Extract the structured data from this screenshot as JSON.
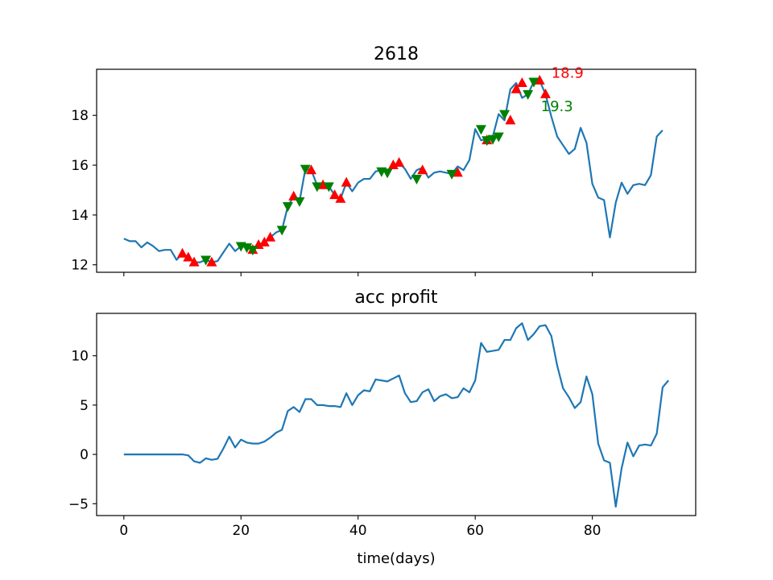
{
  "chart_data": [
    {
      "type": "line",
      "title": "2618",
      "xlabel": "",
      "ylabel": "",
      "xlim": [
        -4.65,
        97.65
      ],
      "ylim": [
        11.7,
        19.85
      ],
      "x_ticks": [
        0,
        20,
        40,
        60,
        80
      ],
      "x_tick_labels_visible": false,
      "y_ticks": [
        12,
        14,
        16,
        18
      ],
      "y_tick_labels": [
        "12",
        "14",
        "16",
        "18"
      ],
      "line_color": "#1f77b4",
      "series": [
        {
          "values": [
            13.05,
            12.95,
            12.95,
            12.7,
            12.9,
            12.75,
            12.55,
            12.6,
            12.6,
            12.2,
            12.45,
            12.3,
            12.1,
            12.1,
            12.2,
            12.1,
            12.15,
            12.5,
            12.85,
            12.55,
            12.75,
            12.7,
            12.6,
            12.8,
            12.9,
            13.1,
            13.3,
            13.4,
            14.35,
            14.75,
            14.55,
            15.85,
            15.8,
            15.2,
            15.15,
            15.15,
            14.8,
            14.65,
            15.3,
            14.95,
            15.3,
            15.45,
            15.45,
            15.75,
            15.8,
            15.7,
            16.0,
            16.1,
            15.85,
            15.45,
            15.8,
            15.9,
            15.5,
            15.7,
            15.75,
            15.7,
            15.65,
            15.95,
            15.8,
            16.2,
            17.45,
            17.0,
            17.05,
            17.15,
            18.05,
            17.8,
            19.05,
            19.3,
            18.7,
            18.85,
            19.35,
            19.4,
            18.85,
            17.95,
            17.15,
            16.8,
            16.45,
            16.65,
            17.5,
            16.9,
            15.25,
            14.7,
            14.6,
            13.1,
            14.5,
            15.3,
            14.85,
            15.2,
            15.25,
            15.2,
            15.6,
            17.15,
            17.4
          ]
        }
      ],
      "buy_markers": {
        "symbol": "triangle-up",
        "color": "#ff0000",
        "x": [
          10,
          11,
          12,
          15,
          22,
          23,
          24,
          25,
          29,
          32,
          34,
          36,
          37,
          38,
          46,
          47,
          51,
          57,
          62,
          66,
          67,
          68,
          71,
          72
        ],
        "y": [
          12.45,
          12.3,
          12.1,
          12.1,
          12.6,
          12.8,
          12.9,
          13.1,
          14.75,
          15.8,
          15.2,
          14.8,
          14.65,
          15.3,
          16.0,
          16.1,
          15.8,
          15.7,
          17.0,
          17.8,
          19.05,
          19.3,
          19.4,
          18.85
        ]
      },
      "sell_markers": {
        "symbol": "triangle-down",
        "color": "#008000",
        "x": [
          14,
          20,
          21,
          22,
          27,
          28,
          30,
          31,
          33,
          35,
          44,
          45,
          50,
          56,
          61,
          62,
          63,
          64,
          65,
          69,
          70
        ],
        "y": [
          12.2,
          12.75,
          12.7,
          12.6,
          13.4,
          14.35,
          14.55,
          15.85,
          15.15,
          15.15,
          15.75,
          15.7,
          15.45,
          15.65,
          17.45,
          17.0,
          17.05,
          17.15,
          18.05,
          18.85,
          19.35
        ]
      },
      "annotations": [
        {
          "text": "18.9",
          "color": "#ff0000",
          "x": 73.0,
          "y": 19.73
        },
        {
          "text": "19.3",
          "color": "#008000",
          "x": 71.2,
          "y": 18.4
        }
      ]
    },
    {
      "type": "line",
      "title": "acc profit",
      "xlabel": "time(days)",
      "ylabel": "",
      "xlim": [
        -4.65,
        97.65
      ],
      "ylim": [
        -6.2,
        14.3
      ],
      "x_ticks": [
        0,
        20,
        40,
        60,
        80
      ],
      "x_tick_labels": [
        "0",
        "20",
        "40",
        "60",
        "80"
      ],
      "y_ticks": [
        -5,
        0,
        5,
        10
      ],
      "y_tick_labels": [
        "−5",
        "0",
        "5",
        "10"
      ],
      "line_color": "#1f77b4",
      "series": [
        {
          "values": [
            0,
            0,
            0,
            0,
            0,
            0,
            0,
            0,
            0,
            0,
            0,
            -0.1,
            -0.7,
            -0.85,
            -0.4,
            -0.55,
            -0.45,
            0.6,
            1.8,
            0.7,
            1.5,
            1.2,
            1.1,
            1.1,
            1.3,
            1.7,
            2.2,
            2.5,
            4.4,
            4.8,
            4.3,
            5.6,
            5.6,
            5.0,
            5.0,
            4.9,
            4.9,
            4.8,
            6.2,
            5.0,
            6.0,
            6.5,
            6.4,
            7.6,
            7.5,
            7.4,
            7.7,
            8.0,
            6.2,
            5.3,
            5.4,
            6.3,
            6.6,
            5.4,
            5.9,
            6.1,
            5.7,
            5.8,
            6.7,
            6.3,
            7.5,
            11.3,
            10.4,
            10.5,
            10.6,
            11.6,
            11.6,
            12.8,
            13.3,
            11.6,
            12.2,
            13.0,
            13.1,
            12.0,
            9.0,
            6.7,
            5.8,
            4.7,
            5.3,
            7.9,
            6.1,
            1.1,
            -0.6,
            -0.85,
            -5.3,
            -1.4,
            1.2,
            -0.2,
            0.9,
            1.0,
            0.9,
            2.1,
            6.8,
            7.5
          ]
        }
      ]
    }
  ]
}
